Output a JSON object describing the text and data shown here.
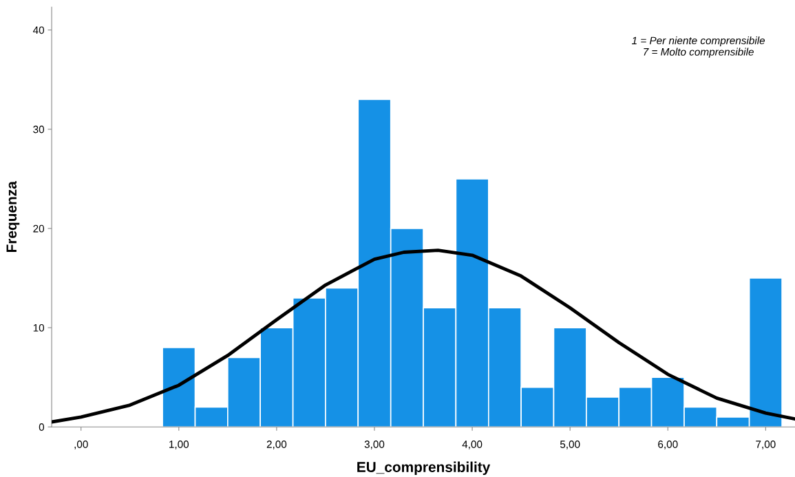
{
  "chart_data": {
    "type": "histogram",
    "xlabel": "EU_comprensibility",
    "ylabel": "Frequenza",
    "bins": [
      0.833,
      1.167,
      1.5,
      1.833,
      2.167,
      2.5,
      2.833,
      3.167,
      3.5,
      3.833,
      4.167,
      4.5,
      4.833,
      5.167,
      5.5,
      5.833,
      6.167,
      6.5,
      6.833,
      7.167
    ],
    "values": [
      8,
      2,
      7,
      10,
      13,
      14,
      33,
      20,
      12,
      25,
      12,
      4,
      10,
      3,
      4,
      5,
      2,
      1,
      15
    ],
    "color": "#1591e6",
    "series": [
      {
        "type": "line",
        "color": "#000000",
        "x": [
          -0.3,
          0,
          0.5,
          1,
          1.5,
          2,
          2.5,
          3,
          3.3,
          3.65,
          4,
          4.5,
          5,
          5.5,
          6,
          6.5,
          7,
          7.3
        ],
        "values": [
          0.5,
          1.0,
          2.2,
          4.2,
          7.2,
          10.8,
          14.3,
          16.9,
          17.6,
          17.8,
          17.3,
          15.2,
          12.0,
          8.5,
          5.3,
          2.9,
          1.4,
          0.8
        ]
      }
    ],
    "xlim": [
      -0.3,
      7.3
    ],
    "ylim": [
      0,
      42.3
    ],
    "xticks": [
      {
        "value": 0,
        "label": ",00"
      },
      {
        "value": 1,
        "label": "1,00"
      },
      {
        "value": 2,
        "label": "2,00"
      },
      {
        "value": 3,
        "label": "3,00"
      },
      {
        "value": 4,
        "label": "4,00"
      },
      {
        "value": 5,
        "label": "5,00"
      },
      {
        "value": 6,
        "label": "6,00"
      },
      {
        "value": 7,
        "label": "7,00"
      }
    ],
    "yticks": [
      0,
      10,
      20,
      30,
      40
    ],
    "annotations": [
      "1 = Per niente comprensibile\n7 = Molto comprensibile"
    ],
    "grid": false,
    "legend": false
  }
}
